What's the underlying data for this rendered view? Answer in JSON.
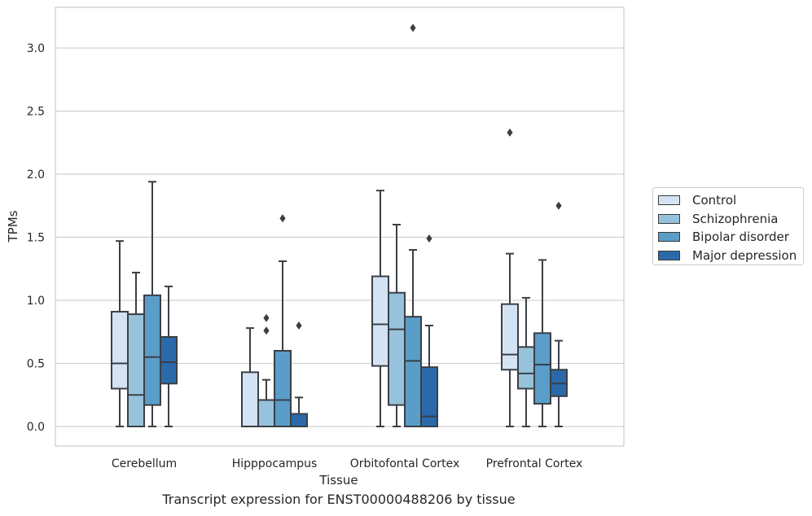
{
  "chart_data": {
    "type": "box",
    "title": "",
    "xlabel": "Tissue",
    "ylabel": "TPMs",
    "caption": "Transcript expression for ENST00000488206 by tissue",
    "ylim": [
      -0.15,
      3.3
    ],
    "yticks": [
      "0.0",
      "0.5",
      "1.0",
      "1.5",
      "2.0",
      "2.5",
      "3.0"
    ],
    "grid": "horizontal",
    "legend_position": "right",
    "categories": [
      "Cerebellum",
      "Hipppocampus",
      "Orbitofontal Cortex",
      "Prefrontal Cortex"
    ],
    "series": [
      {
        "name": "Control",
        "color": "#d4e3f3",
        "boxes": [
          {
            "min": 0.0,
            "q1": 0.3,
            "median": 0.5,
            "q3": 0.91,
            "max": 1.47,
            "outliers": []
          },
          {
            "min": 0.0,
            "q1": 0.0,
            "median": 0.0,
            "q3": 0.43,
            "max": 0.78,
            "outliers": []
          },
          {
            "min": 0.0,
            "q1": 0.48,
            "median": 0.81,
            "q3": 1.19,
            "max": 1.87,
            "outliers": []
          },
          {
            "min": 0.0,
            "q1": 0.45,
            "median": 0.57,
            "q3": 0.97,
            "max": 1.37,
            "outliers": [
              2.33
            ]
          }
        ]
      },
      {
        "name": "Schizophrenia",
        "color": "#97c2dc",
        "boxes": [
          {
            "min": 0.0,
            "q1": 0.0,
            "median": 0.25,
            "q3": 0.89,
            "max": 1.22,
            "outliers": []
          },
          {
            "min": 0.0,
            "q1": 0.0,
            "median": 0.21,
            "q3": 0.21,
            "max": 0.37,
            "outliers": [
              0.76,
              0.86
            ]
          },
          {
            "min": 0.0,
            "q1": 0.17,
            "median": 0.77,
            "q3": 1.06,
            "max": 1.6,
            "outliers": []
          },
          {
            "min": 0.0,
            "q1": 0.3,
            "median": 0.42,
            "q3": 0.63,
            "max": 1.02,
            "outliers": []
          }
        ]
      },
      {
        "name": "Bipolar disorder",
        "color": "#5a9dc8",
        "boxes": [
          {
            "min": 0.0,
            "q1": 0.17,
            "median": 0.55,
            "q3": 1.04,
            "max": 1.94,
            "outliers": []
          },
          {
            "min": 0.0,
            "q1": 0.0,
            "median": 0.21,
            "q3": 0.6,
            "max": 1.31,
            "outliers": [
              1.65
            ]
          },
          {
            "min": 0.0,
            "q1": 0.0,
            "median": 0.52,
            "q3": 0.87,
            "max": 1.4,
            "outliers": [
              3.16
            ]
          },
          {
            "min": 0.0,
            "q1": 0.18,
            "median": 0.49,
            "q3": 0.74,
            "max": 1.32,
            "outliers": []
          }
        ]
      },
      {
        "name": "Major depression",
        "color": "#2a6aab",
        "boxes": [
          {
            "min": 0.0,
            "q1": 0.34,
            "median": 0.51,
            "q3": 0.71,
            "max": 1.11,
            "outliers": []
          },
          {
            "min": 0.0,
            "q1": 0.0,
            "median": 0.0,
            "q3": 0.1,
            "max": 0.23,
            "outliers": [
              0.8
            ]
          },
          {
            "min": 0.0,
            "q1": 0.0,
            "median": 0.08,
            "q3": 0.47,
            "max": 0.8,
            "outliers": [
              1.49
            ]
          },
          {
            "min": 0.0,
            "q1": 0.24,
            "median": 0.34,
            "q3": 0.45,
            "max": 0.68,
            "outliers": [
              1.75
            ]
          }
        ]
      }
    ]
  }
}
